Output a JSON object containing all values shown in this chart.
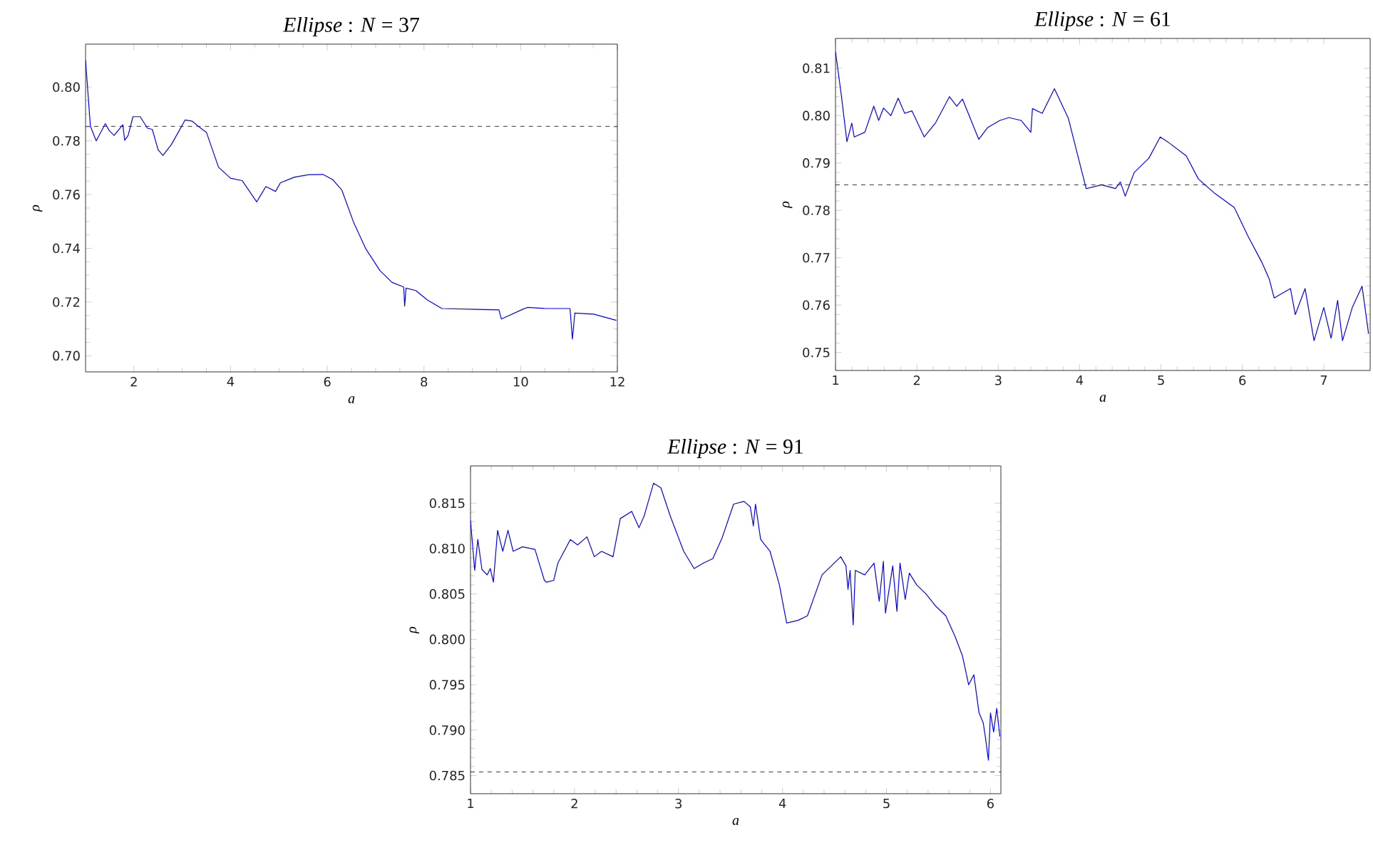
{
  "chart_data": [
    {
      "type": "line",
      "title": "*Ellipse* :  *N* = 37",
      "xlabel": "a",
      "ylabel": "ρ",
      "color": "#0000ff",
      "x": [
        1,
        1.1,
        1.22,
        1.41,
        1.49,
        1.59,
        1.77,
        1.81,
        1.88,
        1.98,
        2.13,
        2.28,
        2.38,
        2.5,
        2.6,
        2.77,
        3.06,
        3.21,
        3.36,
        3.5,
        3.75,
        4.0,
        4.24,
        4.54,
        4.63,
        4.73,
        4.93,
        5.03,
        5.32,
        5.62,
        5.91,
        6.11,
        6.3,
        6.55,
        6.8,
        7.09,
        7.34,
        7.58,
        7.6,
        7.63,
        7.83,
        8.07,
        8.37,
        9.06,
        9.55,
        9.6,
        10.04,
        10.14,
        10.53,
        11.02,
        11.07,
        11.12,
        11.51,
        11.98
      ],
      "values": [
        0.81,
        0.7855,
        0.78,
        0.7864,
        0.7838,
        0.782,
        0.786,
        0.7802,
        0.782,
        0.789,
        0.789,
        0.7847,
        0.7843,
        0.7767,
        0.7746,
        0.7785,
        0.7878,
        0.7873,
        0.785,
        0.7832,
        0.7702,
        0.7661,
        0.7652,
        0.7573,
        0.76,
        0.763,
        0.7612,
        0.7644,
        0.7665,
        0.7674,
        0.7675,
        0.7656,
        0.7617,
        0.7494,
        0.7397,
        0.7317,
        0.7273,
        0.7256,
        0.7185,
        0.7252,
        0.7243,
        0.7208,
        0.7176,
        0.7173,
        0.7171,
        0.7137,
        0.7173,
        0.718,
        0.7176,
        0.7176,
        0.7062,
        0.7159,
        0.7155,
        0.7132
      ],
      "xlim": [
        1,
        12
      ],
      "ylim": [
        0.694,
        0.816
      ],
      "xticks": [
        2,
        4,
        6,
        8,
        10,
        12
      ],
      "yticks": [
        {
          "value": 0.7,
          "label": "0.70"
        },
        {
          "value": 0.72,
          "label": "0.72"
        },
        {
          "value": 0.74,
          "label": "0.74"
        },
        {
          "value": 0.76,
          "label": "0.76"
        },
        {
          "value": 0.78,
          "label": "0.78"
        },
        {
          "value": 0.8,
          "label": "0.80"
        }
      ],
      "ref_lines": [
        {
          "axis": "y",
          "value": 0.7854,
          "color": "#000000",
          "line_style": "dashed"
        }
      ]
    },
    {
      "type": "line",
      "title": "*Ellipse* :  *N* = 61",
      "xlabel": "a",
      "ylabel": "ρ",
      "color": "#0000ff",
      "x": [
        1.0,
        1.07,
        1.14,
        1.2,
        1.23,
        1.36,
        1.47,
        1.53,
        1.59,
        1.68,
        1.77,
        1.85,
        1.94,
        2.09,
        2.23,
        2.4,
        2.49,
        2.56,
        2.76,
        2.87,
        3.02,
        3.13,
        3.28,
        3.4,
        3.42,
        3.54,
        3.69,
        3.86,
        4.08,
        4.27,
        4.44,
        4.5,
        4.56,
        4.67,
        4.85,
        4.99,
        5.08,
        5.31,
        5.46,
        5.66,
        5.9,
        6.07,
        6.24,
        6.33,
        6.39,
        6.59,
        6.65,
        6.77,
        6.88,
        7.0,
        7.09,
        7.17,
        7.23,
        7.35,
        7.47,
        7.55
      ],
      "values": [
        0.8135,
        0.8045,
        0.7945,
        0.7984,
        0.7955,
        0.7965,
        0.802,
        0.799,
        0.8016,
        0.8,
        0.8037,
        0.8005,
        0.801,
        0.7955,
        0.7985,
        0.804,
        0.802,
        0.8035,
        0.795,
        0.7975,
        0.799,
        0.7996,
        0.799,
        0.7965,
        0.8015,
        0.8005,
        0.8057,
        0.7995,
        0.7846,
        0.7854,
        0.7846,
        0.786,
        0.783,
        0.788,
        0.791,
        0.7955,
        0.7945,
        0.7915,
        0.7866,
        0.7836,
        0.7806,
        0.7745,
        0.769,
        0.7655,
        0.7615,
        0.7635,
        0.758,
        0.7635,
        0.7525,
        0.7595,
        0.753,
        0.761,
        0.7525,
        0.7595,
        0.764,
        0.754
      ],
      "xlim": [
        1,
        7.57
      ],
      "ylim": [
        0.7462,
        0.8163
      ],
      "xticks": [
        1,
        2,
        3,
        4,
        5,
        6,
        7
      ],
      "yticks": [
        {
          "value": 0.75,
          "label": "0.75"
        },
        {
          "value": 0.76,
          "label": "0.76"
        },
        {
          "value": 0.77,
          "label": "0.77"
        },
        {
          "value": 0.78,
          "label": "0.78"
        },
        {
          "value": 0.79,
          "label": "0.79"
        },
        {
          "value": 0.8,
          "label": "0.80"
        },
        {
          "value": 0.81,
          "label": "0.81"
        }
      ],
      "ref_lines": [
        {
          "axis": "y",
          "value": 0.7854,
          "color": "#000000",
          "line_style": "dashed"
        }
      ]
    },
    {
      "type": "line",
      "title": "*Ellipse* :  *N* = 91",
      "xlabel": "a",
      "ylabel": "ρ",
      "color": "#0000ff",
      "x": [
        1.0,
        1.04,
        1.07,
        1.11,
        1.16,
        1.19,
        1.22,
        1.26,
        1.31,
        1.36,
        1.41,
        1.5,
        1.62,
        1.71,
        1.73,
        1.8,
        1.84,
        1.96,
        2.03,
        2.12,
        2.19,
        2.26,
        2.37,
        2.44,
        2.55,
        2.62,
        2.67,
        2.76,
        2.83,
        2.92,
        3.05,
        3.15,
        3.24,
        3.33,
        3.42,
        3.53,
        3.63,
        3.69,
        3.72,
        3.74,
        3.79,
        3.88,
        3.97,
        4.04,
        4.15,
        4.24,
        4.38,
        4.56,
        4.61,
        4.63,
        4.65,
        4.68,
        4.7,
        4.79,
        4.88,
        4.93,
        4.97,
        4.99,
        5.06,
        5.1,
        5.13,
        5.18,
        5.22,
        5.29,
        5.38,
        5.47,
        5.57,
        5.66,
        5.73,
        5.79,
        5.84,
        5.89,
        5.93,
        5.95,
        5.98,
        6.0,
        6.03,
        6.06,
        6.09
      ],
      "values": [
        0.8131,
        0.8076,
        0.811,
        0.8077,
        0.8071,
        0.8078,
        0.8063,
        0.812,
        0.8097,
        0.812,
        0.8097,
        0.8102,
        0.8099,
        0.8065,
        0.8063,
        0.8065,
        0.8084,
        0.811,
        0.8104,
        0.8113,
        0.8091,
        0.8097,
        0.8091,
        0.8133,
        0.8141,
        0.8123,
        0.8136,
        0.8172,
        0.8167,
        0.8136,
        0.8097,
        0.8078,
        0.8084,
        0.8089,
        0.8112,
        0.8149,
        0.8152,
        0.8146,
        0.8125,
        0.8149,
        0.811,
        0.8097,
        0.806,
        0.8018,
        0.8021,
        0.8026,
        0.8071,
        0.8091,
        0.8081,
        0.8055,
        0.8076,
        0.8016,
        0.8076,
        0.8071,
        0.8084,
        0.8042,
        0.8086,
        0.8029,
        0.8081,
        0.8031,
        0.8084,
        0.8044,
        0.8073,
        0.806,
        0.805,
        0.8037,
        0.8026,
        0.8003,
        0.7982,
        0.795,
        0.7961,
        0.7919,
        0.7908,
        0.7893,
        0.7867,
        0.7919,
        0.7898,
        0.7924,
        0.7893
      ],
      "xlim": [
        1,
        6.1
      ],
      "ylim": [
        0.783,
        0.8191
      ],
      "xticks": [
        1,
        2,
        3,
        4,
        5,
        6
      ],
      "yticks": [
        {
          "value": 0.785,
          "label": "0.785"
        },
        {
          "value": 0.79,
          "label": "0.790"
        },
        {
          "value": 0.795,
          "label": "0.795"
        },
        {
          "value": 0.8,
          "label": "0.800"
        },
        {
          "value": 0.805,
          "label": "0.805"
        },
        {
          "value": 0.81,
          "label": "0.810"
        },
        {
          "value": 0.815,
          "label": "0.815"
        }
      ],
      "ref_lines": [
        {
          "axis": "y",
          "value": 0.7854,
          "color": "#000000",
          "line_style": "dashed"
        }
      ]
    }
  ]
}
